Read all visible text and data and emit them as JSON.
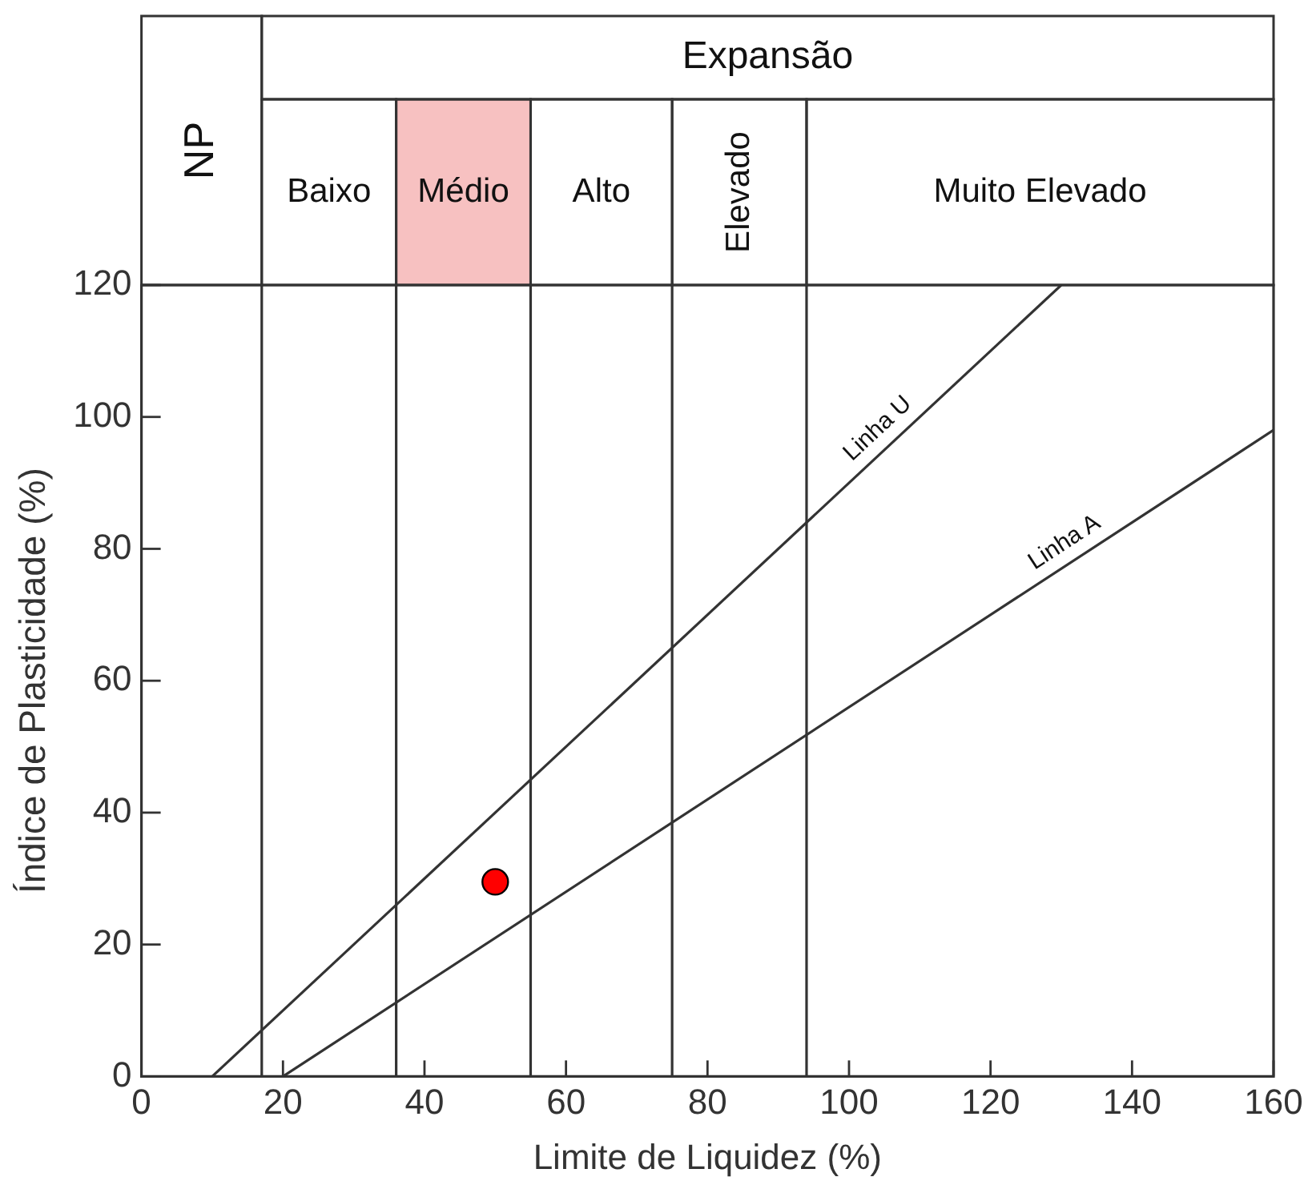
{
  "chart_data": {
    "type": "scatter",
    "xlabel": "Limite de Liquidez (%)",
    "ylabel": "Índice de Plasticidade (%)",
    "xlim": [
      0,
      160
    ],
    "xticks": [
      0,
      20,
      40,
      60,
      80,
      100,
      120,
      140,
      160
    ],
    "ylim": [
      0,
      120
    ],
    "yticks": [
      0,
      20,
      40,
      60,
      80,
      100,
      120
    ],
    "series": [
      {
        "name": "Linha U",
        "type": "line",
        "color": "#333333",
        "x": [
          10,
          130
        ],
        "values": [
          0,
          120
        ]
      },
      {
        "name": "Linha A",
        "type": "line",
        "color": "#333333",
        "x": [
          20,
          160
        ],
        "values": [
          0,
          98
        ]
      },
      {
        "color": "#ff0000",
        "marker": "circle",
        "x": [
          50
        ],
        "values": [
          29.5
        ]
      }
    ],
    "ref_lines": [
      {
        "axis": "x",
        "value": 17,
        "color": "#333333"
      },
      {
        "axis": "x",
        "value": 36,
        "color": "#333333"
      },
      {
        "axis": "x",
        "value": 55,
        "color": "#333333"
      },
      {
        "axis": "x",
        "value": 75,
        "color": "#333333"
      },
      {
        "axis": "x",
        "value": 94,
        "color": "#333333"
      }
    ],
    "annotations": [
      "Expansão",
      "NP",
      "Baixo",
      "Médio",
      "Alto",
      "Elevado",
      "Muito Elevado"
    ]
  }
}
